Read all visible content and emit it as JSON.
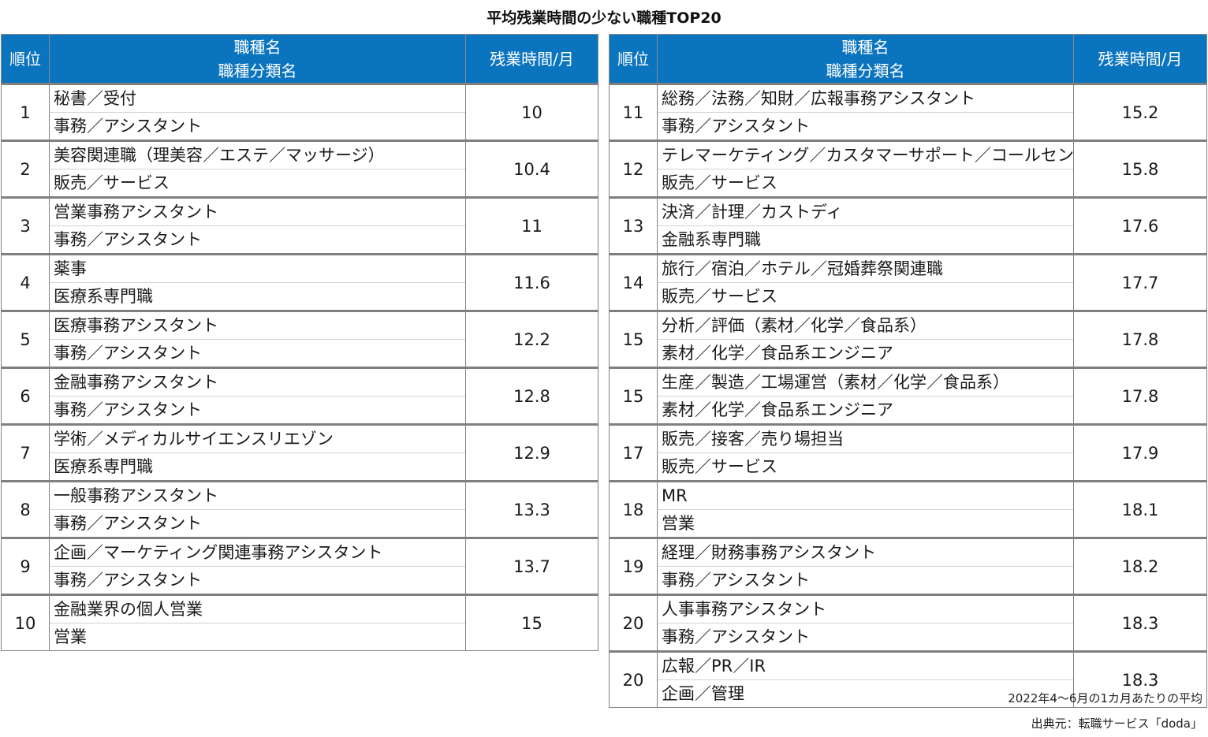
{
  "title": "平均残業時間の少ない職種TOP20",
  "headers": {
    "rank": "順位",
    "name_line1": "職種名",
    "name_line2": "職種分類名",
    "overtime": "残業時間/月"
  },
  "left_table": [
    {
      "rank": "1",
      "name": "秘書／受付",
      "category": "事務／アシスタント",
      "overtime": "10"
    },
    {
      "rank": "2",
      "name": "美容関連職（理美容／エステ／マッサージ）",
      "category": "販売／サービス",
      "overtime": "10.4"
    },
    {
      "rank": "3",
      "name": "営業事務アシスタント",
      "category": "事務／アシスタント",
      "overtime": "11"
    },
    {
      "rank": "4",
      "name": "薬事",
      "category": "医療系専門職",
      "overtime": "11.6"
    },
    {
      "rank": "5",
      "name": "医療事務アシスタント",
      "category": "事務／アシスタント",
      "overtime": "12.2"
    },
    {
      "rank": "6",
      "name": "金融事務アシスタント",
      "category": "事務／アシスタント",
      "overtime": "12.8"
    },
    {
      "rank": "7",
      "name": "学術／メディカルサイエンスリエゾン",
      "category": "医療系専門職",
      "overtime": "12.9"
    },
    {
      "rank": "8",
      "name": "一般事務アシスタント",
      "category": "事務／アシスタント",
      "overtime": "13.3"
    },
    {
      "rank": "9",
      "name": "企画／マーケティング関連事務アシスタント",
      "category": "事務／アシスタント",
      "overtime": "13.7"
    },
    {
      "rank": "10",
      "name": "金融業界の個人営業",
      "category": "営業",
      "overtime": "15"
    }
  ],
  "right_table": [
    {
      "rank": "11",
      "name": "総務／法務／知財／広報事務アシスタント",
      "category": "事務／アシスタント",
      "overtime": "15.2"
    },
    {
      "rank": "12",
      "name": "テレマーケティング／カスタマーサポート／コールセンター",
      "category": "販売／サービス",
      "overtime": "15.8"
    },
    {
      "rank": "13",
      "name": "決済／計理／カストディ",
      "category": "金融系専門職",
      "overtime": "17.6"
    },
    {
      "rank": "14",
      "name": "旅行／宿泊／ホテル／冠婚葬祭関連職",
      "category": "販売／サービス",
      "overtime": "17.7"
    },
    {
      "rank": "15",
      "name": "分析／評価（素材／化学／食品系）",
      "category": "素材／化学／食品系エンジニア",
      "overtime": "17.8"
    },
    {
      "rank": "15",
      "name": "生産／製造／工場運営（素材／化学／食品系）",
      "category": "素材／化学／食品系エンジニア",
      "overtime": "17.8"
    },
    {
      "rank": "17",
      "name": "販売／接客／売り場担当",
      "category": "販売／サービス",
      "overtime": "17.9"
    },
    {
      "rank": "18",
      "name": "MR",
      "category": "営業",
      "overtime": "18.1"
    },
    {
      "rank": "19",
      "name": "経理／財務事務アシスタント",
      "category": "事務／アシスタント",
      "overtime": "18.2"
    },
    {
      "rank": "20",
      "name": "人事事務アシスタント",
      "category": "事務／アシスタント",
      "overtime": "18.3"
    },
    {
      "rank": "20",
      "name": "広報／PR／IR",
      "category": "企画／管理",
      "overtime": "18.3"
    }
  ],
  "footnotes": {
    "period": "2022年4～6月の1カ月あたりの平均",
    "source": "出典元：転職サービス「doda」"
  }
}
